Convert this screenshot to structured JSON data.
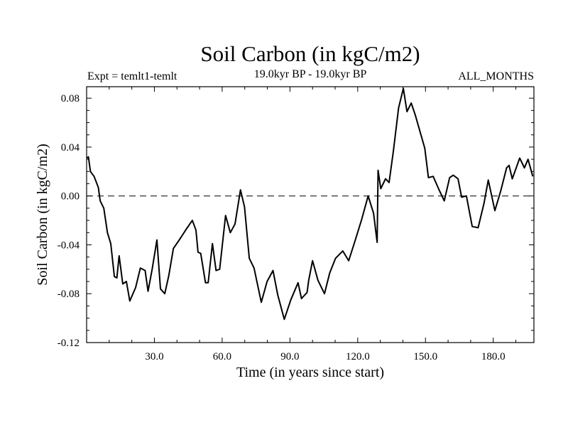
{
  "chart_data": {
    "type": "line",
    "title": "Soil Carbon (in kgC/m2)",
    "subtitle": "19.0kyr BP - 19.0kyr BP",
    "left_annotation": "Expt = temlt1-temlt",
    "right_annotation": "ALL_MONTHS",
    "xlabel": "Time (in years since start)",
    "ylabel": "Soil Carbon (in kgC/m2)",
    "xlim": [
      0,
      198
    ],
    "ylim": [
      -0.12,
      0.0894
    ],
    "xticks": [
      30,
      60,
      90,
      120,
      150,
      180
    ],
    "xtick_labels": [
      "30.0",
      "60.0",
      "90.0",
      "120.0",
      "150.0",
      "180.0"
    ],
    "yticks": [
      0.08,
      0.04,
      0.0,
      -0.04,
      -0.08,
      -0.12
    ],
    "ytick_labels": [
      "0.08",
      "0.04",
      "0.00",
      "-0.04",
      "-0.08",
      "-0.12"
    ],
    "reference_line": 0.0,
    "line_color": "#000000",
    "series": [
      {
        "name": "Soil Carbon",
        "x": [
          0,
          0.8,
          1.7,
          3.3,
          5.2,
          6,
          7.6,
          9.2,
          10.7,
          12.3,
          13.4,
          14.4,
          16,
          17.6,
          19.1,
          21.7,
          23.8,
          25.9,
          27.2,
          29,
          31.1,
          32.7,
          34.6,
          36.4,
          38.4,
          41,
          44.2,
          46.8,
          48.4,
          49.3,
          50.5,
          52.6,
          53.8,
          55.7,
          57.3,
          58.9,
          61.5,
          63.6,
          65.7,
          68.1,
          69.9,
          72,
          74.1,
          77.3,
          79.9,
          82.5,
          84.6,
          87.5,
          90.4,
          93.6,
          95.1,
          97.6,
          98.3,
          100,
          102.4,
          105.3,
          107.6,
          110.2,
          113.4,
          116,
          118.6,
          121.8,
          124.6,
          127,
          128.6,
          129,
          130.2,
          132.3,
          133.9,
          135.8,
          138.1,
          140.2,
          141.8,
          143.7,
          145.5,
          149.7,
          151.3,
          153.4,
          156,
          158.3,
          160.7,
          162.3,
          164.4,
          166,
          168.1,
          170.7,
          173.3,
          175.9,
          177.8,
          180.7,
          183.3,
          185.9,
          187,
          188.4,
          191.7,
          193.8,
          195.4,
          197.5
        ],
        "y": [
          0.031,
          0.032,
          0.02,
          0.016,
          0.007,
          -0.004,
          -0.01,
          -0.03,
          -0.039,
          -0.066,
          -0.067,
          -0.049,
          -0.072,
          -0.07,
          -0.086,
          -0.075,
          -0.059,
          -0.061,
          -0.078,
          -0.06,
          -0.036,
          -0.076,
          -0.08,
          -0.065,
          -0.043,
          -0.036,
          -0.027,
          -0.02,
          -0.028,
          -0.046,
          -0.047,
          -0.071,
          -0.071,
          -0.039,
          -0.061,
          -0.06,
          -0.016,
          -0.03,
          -0.023,
          0.005,
          -0.009,
          -0.051,
          -0.059,
          -0.087,
          -0.07,
          -0.061,
          -0.081,
          -0.101,
          -0.085,
          -0.071,
          -0.084,
          -0.079,
          -0.069,
          -0.053,
          -0.069,
          -0.08,
          -0.063,
          -0.051,
          -0.045,
          -0.053,
          -0.038,
          -0.019,
          0.0,
          -0.014,
          -0.038,
          0.021,
          0.006,
          0.014,
          0.011,
          0.037,
          0.072,
          0.088,
          0.069,
          0.076,
          0.066,
          0.039,
          0.015,
          0.016,
          0.005,
          -0.004,
          0.015,
          0.017,
          0.014,
          -0.001,
          0.0,
          -0.025,
          -0.026,
          -0.006,
          0.013,
          -0.012,
          0.004,
          0.023,
          0.025,
          0.014,
          0.031,
          0.023,
          0.03,
          0.016
        ]
      }
    ]
  }
}
